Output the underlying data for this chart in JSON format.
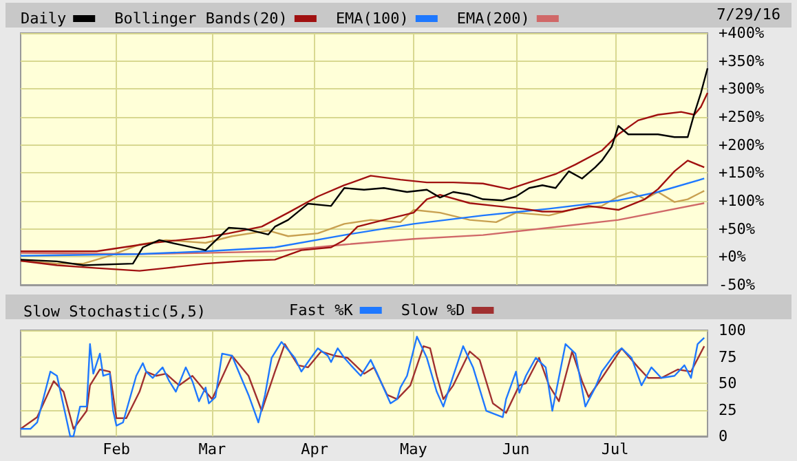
{
  "chart_data": [
    {
      "type": "line",
      "legend": "top",
      "grid": true,
      "marker": "none",
      "tick_labels": "y",
      "annotations": [
        "7/29/16"
      ],
      "xlim": [
        "--01-03",
        "--07-29"
      ],
      "xticks": [
        {
          "value": "--02-01",
          "label": null
        },
        {
          "value": "--03-01",
          "label": null
        },
        {
          "value": "--04-01",
          "label": null
        },
        {
          "value": "--05-01",
          "label": null
        },
        {
          "value": "--06-01",
          "label": null
        },
        {
          "value": "--07-01",
          "label": null
        }
      ],
      "ylim": [
        -50,
        400
      ],
      "yticks": [
        {
          "value": -50,
          "label": "-50%"
        },
        {
          "value": 0,
          "label": "+0%"
        },
        {
          "value": 50,
          "label": "+50%"
        },
        {
          "value": 100,
          "label": "+100%"
        },
        {
          "value": 150,
          "label": "+150%"
        },
        {
          "value": 200,
          "label": "+200%"
        },
        {
          "value": 250,
          "label": "+250%"
        },
        {
          "value": 300,
          "label": "+300%"
        },
        {
          "value": 350,
          "label": "+350%"
        },
        {
          "value": 400,
          "label": "+400%"
        }
      ],
      "series": [
        {
          "name": "Daily",
          "color": "#000000",
          "x": [
            "--01-03",
            "--01-14",
            "--01-22",
            "--02-06",
            "--02-09",
            "--02-14",
            "--02-20",
            "--02-28",
            "--03-06",
            "--03-11",
            "--03-18",
            "--03-20",
            "--03-24",
            "--03-30",
            "--04-06",
            "--04-10",
            "--04-16",
            "--04-22",
            "--04-29",
            "--05-05",
            "--05-09",
            "--05-13",
            "--05-18",
            "--05-22",
            "--05-28",
            "--06-01",
            "--06-05",
            "--06-09",
            "--06-13",
            "--06-17",
            "--06-21",
            "--06-25",
            "--06-27",
            "--06-30",
            "--07-02",
            "--07-05",
            "--07-10",
            "--07-14",
            "--07-19",
            "--07-23",
            "--07-25",
            "--07-27",
            "--07-29"
          ],
          "values": [
            -5,
            -8,
            -15,
            -12,
            17,
            30,
            22,
            12,
            52,
            50,
            40,
            54,
            66,
            95,
            91,
            123,
            120,
            123,
            116,
            120,
            106,
            116,
            111,
            103,
            101,
            108,
            123,
            128,
            123,
            153,
            140,
            160,
            172,
            197,
            234,
            219,
            219,
            219,
            214,
            214,
            256,
            293,
            337
          ]
        },
        {
          "name": "Bollinger Bands(20)",
          "color": "#a01010",
          "x": [
            "--01-03",
            "--01-26",
            "--02-12",
            "--02-28",
            "--03-06",
            "--03-16",
            "--03-24",
            "--04-02",
            "--04-10",
            "--04-18",
            "--04-27",
            "--05-05",
            "--05-13",
            "--05-22",
            "--05-30",
            "--06-05",
            "--06-13",
            "--06-19",
            "--06-27",
            "--07-02",
            "--07-08",
            "--07-14",
            "--07-21",
            "--07-25",
            "--07-27",
            "--07-29"
          ],
          "values": [
            10,
            10,
            25,
            35,
            42,
            54,
            79,
            108,
            128,
            145,
            138,
            133,
            133,
            131,
            121,
            133,
            148,
            165,
            190,
            219,
            244,
            254,
            259,
            254,
            268,
            293
          ]
        },
        {
          "color": "#a01010",
          "x": [
            "--01-03",
            "--01-14",
            "--01-26",
            "--02-08",
            "--02-16",
            "--02-28",
            "--03-11",
            "--03-20",
            "--03-28",
            "--04-06",
            "--04-10",
            "--04-14",
            "--04-22",
            "--05-01",
            "--05-05",
            "--05-09",
            "--05-18",
            "--05-26",
            "--06-03",
            "--06-09",
            "--06-15",
            "--06-23",
            "--07-02",
            "--07-10",
            "--07-14",
            "--07-19",
            "--07-23",
            "--07-28"
          ],
          "values": [
            -7,
            -15,
            -20,
            -25,
            -20,
            -12,
            -7,
            -5,
            12,
            17,
            30,
            54,
            66,
            79,
            103,
            111,
            96,
            91,
            86,
            81,
            81,
            91,
            84,
            103,
            121,
            153,
            172,
            160
          ]
        },
        {
          "name": "EMA(100)",
          "color": "#1e78ff",
          "x": [
            "--01-03",
            "--02-08",
            "--02-28",
            "--03-20",
            "--04-10",
            "--05-01",
            "--05-22",
            "--06-11",
            "--07-02",
            "--07-14",
            "--07-28"
          ],
          "values": [
            2,
            5,
            10,
            17,
            39,
            59,
            74,
            86,
            101,
            116,
            140
          ]
        },
        {
          "name": "EMA(200)",
          "color": "#d06868",
          "x": [
            "--01-03",
            "--02-08",
            "--02-28",
            "--03-20",
            "--04-10",
            "--05-01",
            "--05-22",
            "--06-11",
            "--07-02",
            "--07-28"
          ],
          "values": [
            7,
            5,
            7,
            10,
            22,
            32,
            39,
            52,
            66,
            96
          ]
        },
        {
          "color": "#c8a050",
          "x": [
            "--01-03",
            "--01-14",
            "--01-22",
            "--01-30",
            "--02-08",
            "--02-16",
            "--02-28",
            "--03-07",
            "--03-18",
            "--03-24",
            "--04-02",
            "--04-10",
            "--04-18",
            "--04-27",
            "--05-01",
            "--05-09",
            "--05-18",
            "--05-26",
            "--06-01",
            "--06-11",
            "--06-19",
            "--06-27",
            "--07-02",
            "--07-06",
            "--07-10",
            "--07-14",
            "--07-19",
            "--07-23",
            "--07-28"
          ],
          "values": [
            -7,
            -12,
            -12,
            2,
            22,
            30,
            25,
            37,
            47,
            37,
            42,
            59,
            66,
            62,
            84,
            79,
            66,
            62,
            79,
            74,
            86,
            91,
            108,
            116,
            103,
            116,
            98,
            103,
            118
          ]
        }
      ]
    },
    {
      "type": "line",
      "title": "Slow Stochastic(5,5)",
      "legend": "top",
      "grid": true,
      "marker": "none",
      "xlim": [
        "--01-03",
        "--07-29"
      ],
      "xticks": [
        {
          "value": "--02-01",
          "label": "Feb"
        },
        {
          "value": "--03-01",
          "label": "Mar"
        },
        {
          "value": "--04-01",
          "label": "Apr"
        },
        {
          "value": "--05-01",
          "label": "May"
        },
        {
          "value": "--06-01",
          "label": "Jun"
        },
        {
          "value": "--07-01",
          "label": "Jul"
        }
      ],
      "ylim": [
        0,
        100
      ],
      "yticks": [
        0,
        25,
        50,
        75,
        100
      ],
      "series": [
        {
          "name": "Fast %K",
          "color": "#1e78ff",
          "x": [
            "--01-03",
            "--01-06",
            "--01-08",
            "--01-12",
            "--01-14",
            "--01-18",
            "--01-19",
            "--01-21",
            "--01-23",
            "--01-24",
            "--01-25",
            "--01-27",
            "--01-28",
            "--01-30",
            "--01-31",
            "--02-01",
            "--02-03",
            "--02-07",
            "--02-09",
            "--02-10",
            "--02-12",
            "--02-15",
            "--02-17",
            "--02-19",
            "--02-22",
            "--02-24",
            "--02-26",
            "--02-28",
            "--02-29",
            "--03-02",
            "--03-04",
            "--03-07",
            "--03-09",
            "--03-12",
            "--03-15",
            "--03-17",
            "--03-19",
            "--03-22",
            "--03-26",
            "--03-28",
            "--03-30",
            "--04-02",
            "--04-05",
            "--04-06",
            "--04-08",
            "--04-10",
            "--04-12",
            "--04-15",
            "--04-18",
            "--04-20",
            "--04-24",
            "--04-26",
            "--04-27",
            "--04-29",
            "--05-02",
            "--05-05",
            "--05-08",
            "--05-10",
            "--05-13",
            "--05-16",
            "--05-19",
            "--05-23",
            "--05-28",
            "--05-29",
            "--06-01",
            "--06-02",
            "--06-04",
            "--06-07",
            "--06-10",
            "--06-12",
            "--06-16",
            "--06-19",
            "--06-22",
            "--06-25",
            "--06-27",
            "--07-01",
            "--07-03",
            "--07-06",
            "--07-09",
            "--07-12",
            "--07-15",
            "--07-19",
            "--07-22",
            "--07-24",
            "--07-26",
            "--07-28"
          ],
          "values": [
            7,
            7,
            13,
            61,
            57,
            0,
            0,
            28,
            28,
            87,
            59,
            78,
            57,
            59,
            24,
            10,
            13,
            57,
            69,
            61,
            55,
            65,
            52,
            42,
            65,
            52,
            33,
            46,
            31,
            37,
            78,
            76,
            61,
            39,
            13,
            39,
            74,
            89,
            74,
            61,
            70,
            83,
            76,
            70,
            83,
            74,
            67,
            57,
            72,
            59,
            31,
            35,
            46,
            57,
            94,
            74,
            42,
            28,
            57,
            85,
            65,
            24,
            18,
            35,
            61,
            41,
            57,
            74,
            65,
            24,
            87,
            78,
            28,
            46,
            61,
            78,
            83,
            74,
            48,
            65,
            55,
            57,
            67,
            55,
            87,
            93
          ]
        },
        {
          "name": "Slow %D",
          "color": "#a03030",
          "x": [
            "--01-03",
            "--01-08",
            "--01-13",
            "--01-16",
            "--01-19",
            "--01-23",
            "--01-24",
            "--01-27",
            "--01-30",
            "--02-01",
            "--02-04",
            "--02-08",
            "--02-10",
            "--02-13",
            "--02-16",
            "--02-20",
            "--02-24",
            "--02-28",
            "--03-01",
            "--03-07",
            "--03-12",
            "--03-16",
            "--03-20",
            "--03-23",
            "--03-27",
            "--03-30",
            "--04-03",
            "--04-07",
            "--04-11",
            "--04-16",
            "--04-19",
            "--04-23",
            "--04-26",
            "--04-30",
            "--05-04",
            "--05-06",
            "--05-08",
            "--05-10",
            "--05-13",
            "--05-18",
            "--05-21",
            "--05-25",
            "--05-29",
            "--06-02",
            "--06-04",
            "--06-08",
            "--06-11",
            "--06-14",
            "--06-18",
            "--06-21",
            "--06-23",
            "--06-27",
            "--07-03",
            "--07-08",
            "--07-11",
            "--07-15",
            "--07-20",
            "--07-24",
            "--07-28"
          ],
          "values": [
            7,
            18,
            52,
            42,
            7,
            24,
            48,
            63,
            61,
            17,
            17,
            42,
            61,
            57,
            59,
            48,
            57,
            42,
            35,
            76,
            57,
            24,
            61,
            87,
            67,
            65,
            80,
            76,
            74,
            59,
            65,
            39,
            35,
            48,
            85,
            83,
            57,
            35,
            48,
            80,
            72,
            31,
            22,
            48,
            50,
            74,
            48,
            33,
            80,
            52,
            37,
            55,
            83,
            65,
            55,
            55,
            63,
            61,
            85
          ]
        }
      ]
    }
  ]
}
